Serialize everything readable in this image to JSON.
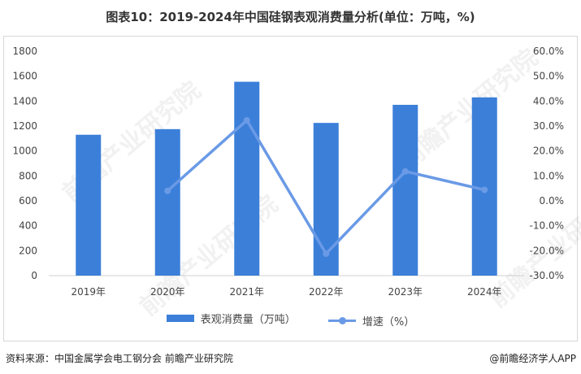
{
  "header": {
    "title": "图表10：2019-2024年中国硅钢表观消费量分析(单位：万吨，%)"
  },
  "footer": {
    "source": "资料来源：中国金属学会电工钢分会 前瞻产业研究院",
    "brand": "@前瞻经济学人APP"
  },
  "watermark": {
    "text": "前瞻产业研究院"
  },
  "chart_data": {
    "type": "bar",
    "categories": [
      "2019年",
      "2020年",
      "2021年",
      "2022年",
      "2023年",
      "2024年"
    ],
    "series": [
      {
        "name": "表观消费量（万吨）",
        "type": "bar",
        "axis": "left",
        "color": "#3b7fd9",
        "values": [
          1130,
          1175,
          1555,
          1225,
          1370,
          1430
        ]
      },
      {
        "name": "增速（%）",
        "type": "line",
        "axis": "right",
        "color": "#6a9ae6",
        "values": [
          null,
          4.0,
          32.3,
          -21.2,
          11.8,
          4.4
        ]
      }
    ],
    "y_left": {
      "min": 0,
      "max": 1800,
      "ticks": [
        "0",
        "200",
        "400",
        "600",
        "800",
        "1000",
        "1200",
        "1400",
        "1600",
        "1800"
      ]
    },
    "y_right": {
      "min": -30,
      "max": 60,
      "ticks": [
        "-30.0%",
        "-20.0%",
        "-10.0%",
        "0.0%",
        "10.0%",
        "20.0%",
        "30.0%",
        "40.0%",
        "50.0%",
        "60.0%"
      ]
    },
    "legend_position": "bottom",
    "grid": false
  }
}
